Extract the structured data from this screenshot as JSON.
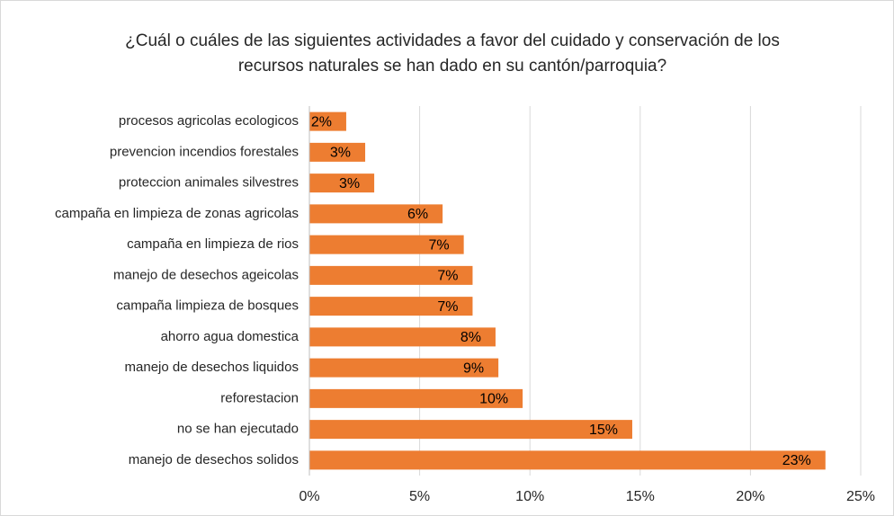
{
  "chart_data": {
    "type": "bar",
    "orientation": "horizontal",
    "title": [
      "¿Cuál o cuáles de las siguientes actividades a favor del cuidado y conservación de los",
      "recursos naturales se han dado en su cantón/parroquia?"
    ],
    "categories": [
      "procesos agricolas ecologicos",
      "prevencion incendios forestales",
      "proteccion animales silvestres",
      "campaña en limpieza de zonas agricolas",
      "campaña en limpieza de rios",
      "manejo de desechos ageicolas",
      "campaña limpieza de bosques",
      "ahorro agua domestica",
      "manejo de desechos liquidos",
      "reforestacion",
      "no se han ejecutado",
      "manejo de desechos solidos"
    ],
    "values": [
      1.67,
      2.53,
      2.94,
      6.04,
      7.0,
      7.4,
      7.4,
      8.44,
      8.57,
      9.67,
      14.64,
      23.4
    ],
    "value_labels": [
      "2%",
      "3%",
      "3%",
      "6%",
      "7%",
      "7%",
      "7%",
      "8%",
      "9%",
      "10%",
      "15%",
      "23%"
    ],
    "color": "#ed7d31",
    "xlim": [
      0,
      25
    ],
    "xticks": [
      {
        "value": 0,
        "label": "0%"
      },
      {
        "value": 5,
        "label": "5%"
      },
      {
        "value": 10,
        "label": "10%"
      },
      {
        "value": 15,
        "label": "15%"
      },
      {
        "value": 20,
        "label": "20%"
      },
      {
        "value": 25,
        "label": "25%"
      }
    ],
    "grid": true
  }
}
